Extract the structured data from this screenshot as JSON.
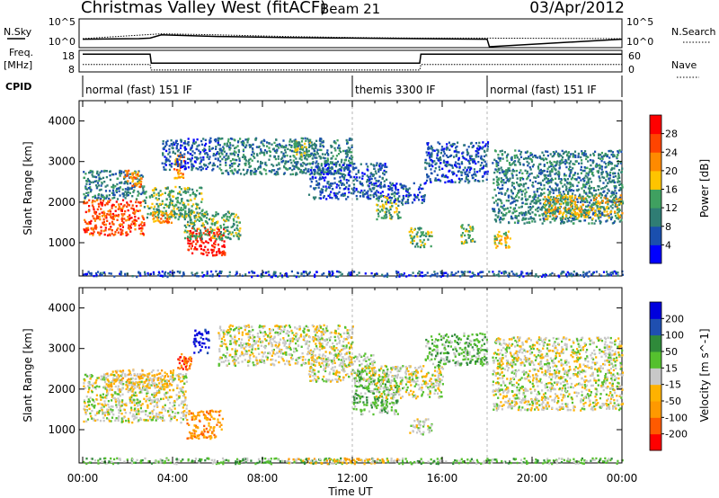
{
  "header": {
    "station": "Christmas Valley West (fitACF)",
    "beam": "Beam 21",
    "date": "03/Apr/2012"
  },
  "strip": {
    "nsky_label": "N.Sky",
    "nsearch_label": "N.Search",
    "freq_label_line1": "Freq.",
    "freq_label_line2": "[MHz]",
    "nave_label": "Nave",
    "cpid_label": "CPID",
    "nsky_ticks": [
      "10^5",
      "10^0"
    ],
    "nsearch_ticks": [
      "10^5",
      "10^0"
    ],
    "freq_ticks": [
      "18",
      "8"
    ],
    "nave_ticks": [
      "60",
      "0"
    ]
  },
  "cpid_segments": [
    {
      "label": "normal (fast) 151 IF",
      "start_hour": 0,
      "end_hour": 12
    },
    {
      "label": "themis 3300 IF",
      "start_hour": 12,
      "end_hour": 18
    },
    {
      "label": "normal (fast) 151 IF",
      "start_hour": 18,
      "end_hour": 24
    }
  ],
  "x_axis": {
    "label": "Time UT",
    "ticks": [
      "00:00",
      "04:00",
      "08:00",
      "12:00",
      "16:00",
      "20:00",
      "00:00"
    ],
    "range_hours": [
      0,
      24
    ]
  },
  "colors": {
    "power": [
      "#0000ff",
      "#1a4fae",
      "#2f7d74",
      "#3fa060",
      "#ffc400",
      "#ff8a00",
      "#ff4400",
      "#ff0000"
    ],
    "velocity": [
      "#ff0000",
      "#ff5a00",
      "#ff9900",
      "#ffb200",
      "#c8c8c8",
      "#55c02e",
      "#2f8a3a",
      "#1f4fb0",
      "#0000dd"
    ]
  },
  "chart_data": [
    {
      "type": "line",
      "title": "",
      "ylabel": "N.Sky / N.Search",
      "ylim_log10": [
        0,
        5
      ],
      "series": [
        {
          "name": "N.Sky",
          "x": [
            0,
            2.5,
            3.0,
            3.5,
            6,
            9,
            12,
            15,
            18,
            18.1,
            24
          ],
          "y": [
            1.4,
            1.5,
            1.6,
            2.2,
            1.9,
            1.7,
            1.6,
            1.5,
            1.4,
            0,
            1.4
          ]
        },
        {
          "name": "N.Search",
          "x": [
            0,
            3.5,
            6,
            9,
            12,
            15,
            18,
            24
          ],
          "y": [
            1.5,
            2.4,
            2.2,
            1.9,
            1.7,
            1.6,
            1.6,
            1.5
          ]
        }
      ]
    },
    {
      "type": "line",
      "title": "",
      "ylabel": "Freq. [MHz] / Nave",
      "series": [
        {
          "name": "Freq.",
          "x": [
            0,
            3.0,
            3.05,
            15.0,
            15.05,
            18.0,
            18.05,
            24
          ],
          "y": [
            16.5,
            16.5,
            12.0,
            12.0,
            16.5,
            16.5,
            16.5,
            16.5
          ]
        },
        {
          "name": "Nave",
          "x": [
            0,
            3.0,
            3.05,
            15.0,
            15.05,
            18.0,
            18.05,
            24
          ],
          "y": [
            20,
            20,
            3,
            3,
            20,
            20,
            20,
            20
          ]
        }
      ]
    },
    {
      "type": "heatmap",
      "title": "",
      "xlabel": "Time UT",
      "ylabel": "Slant Range [km]",
      "ylim": [
        180,
        4500
      ],
      "yticks": [
        1000,
        2000,
        3000,
        4000
      ],
      "colorbar": {
        "label": "Power [dB]",
        "ticks": [
          4,
          8,
          12,
          16,
          20,
          24,
          28
        ],
        "range": [
          0,
          30
        ]
      },
      "regions": [
        {
          "t0": 0.0,
          "t1": 2.7,
          "r0": 1200,
          "r1": 2100,
          "level": 6
        },
        {
          "t0": 0.0,
          "t1": 2.7,
          "r0": 2100,
          "r1": 2800,
          "level": 2
        },
        {
          "t0": 1.8,
          "t1": 2.6,
          "r0": 2400,
          "r1": 2800,
          "level": 5
        },
        {
          "t0": 2.7,
          "t1": 5.3,
          "r0": 1600,
          "r1": 2400,
          "level": 3
        },
        {
          "t0": 3.0,
          "t1": 4.0,
          "r0": 1500,
          "r1": 1800,
          "level": 5
        },
        {
          "t0": 4.0,
          "t1": 4.5,
          "r0": 2600,
          "r1": 3200,
          "level": 5
        },
        {
          "t0": 4.6,
          "t1": 6.3,
          "r0": 700,
          "r1": 1400,
          "level": 7
        },
        {
          "t0": 4.5,
          "t1": 7.0,
          "r0": 1100,
          "r1": 1800,
          "level": 3
        },
        {
          "t0": 3.5,
          "t1": 6.0,
          "r0": 2800,
          "r1": 3600,
          "level": 1
        },
        {
          "t0": 6.0,
          "t1": 12.0,
          "r0": 2700,
          "r1": 3600,
          "level": 2
        },
        {
          "t0": 9.3,
          "t1": 10.2,
          "r0": 3100,
          "r1": 3600,
          "level": 3
        },
        {
          "t0": 10.0,
          "t1": 13.5,
          "r0": 2100,
          "r1": 3000,
          "level": 1
        },
        {
          "t0": 13.0,
          "t1": 14.2,
          "r0": 1600,
          "r1": 2200,
          "level": 3
        },
        {
          "t0": 13.5,
          "t1": 15.2,
          "r0": 2000,
          "r1": 2500,
          "level": 1
        },
        {
          "t0": 14.5,
          "t1": 15.5,
          "r0": 900,
          "r1": 1400,
          "level": 3
        },
        {
          "t0": 15.2,
          "t1": 18.0,
          "r0": 2500,
          "r1": 3500,
          "level": 1
        },
        {
          "t0": 16.8,
          "t1": 17.5,
          "r0": 1000,
          "r1": 1500,
          "level": 3
        },
        {
          "t0": 18.2,
          "t1": 24.0,
          "r0": 1500,
          "r1": 3300,
          "level": 2
        },
        {
          "t0": 20.5,
          "t1": 24.0,
          "r0": 1600,
          "r1": 2200,
          "level": 4
        },
        {
          "t0": 18.3,
          "t1": 19.0,
          "r0": 900,
          "r1": 1300,
          "level": 4
        },
        {
          "t0": 0.0,
          "t1": 24.0,
          "r0": 180,
          "r1": 320,
          "level": 1
        }
      ]
    },
    {
      "type": "heatmap",
      "title": "",
      "xlabel": "Time UT",
      "ylabel": "Slant Range [km]",
      "ylim": [
        180,
        4500
      ],
      "yticks": [
        1000,
        2000,
        3000,
        4000
      ],
      "colorbar": {
        "label": "Velocity [m s^-1]",
        "ticks": [
          "200",
          "100",
          "50",
          "15",
          "-15",
          "-50",
          "-100",
          "-200"
        ],
        "range": [
          -250,
          250
        ]
      },
      "regions": [
        {
          "t0": 0.0,
          "t1": 4.6,
          "r0": 1200,
          "r1": 2400,
          "level": 4
        },
        {
          "t0": 1.0,
          "t1": 4.0,
          "r0": 2000,
          "r1": 2500,
          "level": 3
        },
        {
          "t0": 4.6,
          "t1": 6.2,
          "r0": 800,
          "r1": 1500,
          "level": 2
        },
        {
          "t0": 4.9,
          "t1": 5.6,
          "r0": 2900,
          "r1": 3500,
          "level": 8
        },
        {
          "t0": 4.2,
          "t1": 4.8,
          "r0": 2500,
          "r1": 2900,
          "level": 1
        },
        {
          "t0": 6.0,
          "t1": 12.0,
          "r0": 2600,
          "r1": 3600,
          "level": 4
        },
        {
          "t0": 10.0,
          "t1": 13.0,
          "r0": 2200,
          "r1": 2900,
          "level": 4
        },
        {
          "t0": 12.0,
          "t1": 14.0,
          "r0": 1400,
          "r1": 2500,
          "level": 5
        },
        {
          "t0": 13.0,
          "t1": 16.0,
          "r0": 1800,
          "r1": 2600,
          "level": 4
        },
        {
          "t0": 14.5,
          "t1": 15.5,
          "r0": 900,
          "r1": 1300,
          "level": 4
        },
        {
          "t0": 15.2,
          "t1": 18.0,
          "r0": 2600,
          "r1": 3400,
          "level": 5
        },
        {
          "t0": 18.2,
          "t1": 24.0,
          "r0": 1500,
          "r1": 3300,
          "level": 4
        },
        {
          "t0": 0.0,
          "t1": 24.0,
          "r0": 180,
          "r1": 320,
          "level": 5
        },
        {
          "t0": 9.0,
          "t1": 14.0,
          "r0": 180,
          "r1": 320,
          "level": 3
        }
      ]
    }
  ]
}
